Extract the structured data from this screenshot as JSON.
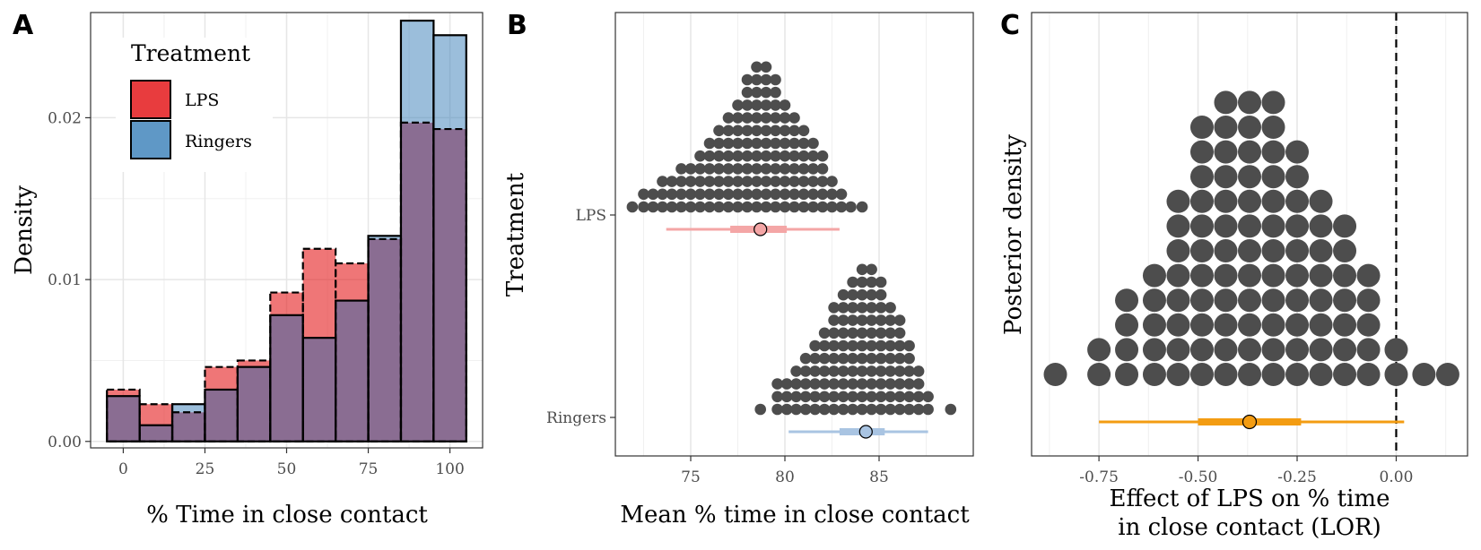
{
  "panels": {
    "a": {
      "letter": "A"
    },
    "b": {
      "letter": "B"
    },
    "c": {
      "letter": "C"
    }
  },
  "colors": {
    "lps_fill": "#e41a1c",
    "ringers_fill": "#377eb8",
    "overlap": "#8a6d92",
    "dot": "#4d4d4d",
    "lps_interval": "#f4a6a6",
    "ringers_interval": "#a9c4e2",
    "effect_interval": "#f39c12"
  },
  "chart_data": [
    {
      "type": "histogram",
      "panel": "A",
      "xlabel": "% Time in close contact",
      "ylabel": "Density",
      "xlim": [
        -10,
        110
      ],
      "ylim": [
        -0.0004,
        0.0265
      ],
      "xticks": [
        0,
        25,
        50,
        75,
        100
      ],
      "xtick_labels": [
        "0",
        "25",
        "50",
        "75",
        "100"
      ],
      "yticks": [
        0,
        0.01,
        0.02
      ],
      "ytick_labels": [
        "0.00",
        "0.01",
        "0.02"
      ],
      "bin_edges": [
        -5,
        5,
        15,
        25,
        35,
        45,
        55,
        65,
        75,
        85,
        95,
        105
      ],
      "legend": {
        "title": "Treatment",
        "position": "top-left",
        "entries": [
          "LPS",
          "Ringers"
        ]
      },
      "grid": true,
      "series": [
        {
          "name": "LPS",
          "values": [
            0.0032,
            0.0023,
            0.0018,
            0.0046,
            0.005,
            0.0092,
            0.0119,
            0.011,
            0.0125,
            0.0197,
            0.0193
          ]
        },
        {
          "name": "Ringers",
          "values": [
            0.0028,
            0.001,
            0.0023,
            0.0032,
            0.0046,
            0.0078,
            0.0064,
            0.0087,
            0.0127,
            0.026,
            0.0251
          ]
        }
      ]
    },
    {
      "type": "dotplot",
      "panel": "B",
      "xlabel": "Mean % time in close contact",
      "ylabel": "Treatment",
      "xlim": [
        71,
        90
      ],
      "xticks": [
        75,
        80,
        85
      ],
      "xtick_labels": [
        "75",
        "80",
        "85"
      ],
      "categories": [
        "LPS",
        "Ringers"
      ],
      "dot_binwidth": 0.5,
      "grid": true,
      "series": [
        {
          "name": "LPS",
          "bins": [
            71.9,
            72.5,
            73.0,
            73.5,
            74.0,
            74.5,
            75.0,
            75.5,
            76.0,
            76.5,
            77.0,
            77.5,
            78.0,
            78.5,
            79.0,
            79.5,
            80.0,
            80.5,
            81.0,
            81.5,
            82.0,
            82.5,
            83.0,
            83.5,
            84.1
          ],
          "counts": [
            1,
            2,
            2,
            3,
            3,
            4,
            4,
            5,
            6,
            7,
            8,
            9,
            11,
            12,
            12,
            11,
            9,
            8,
            7,
            6,
            5,
            3,
            2,
            1,
            1
          ],
          "median": 78.7,
          "interval_66": [
            77.1,
            80.1
          ],
          "interval_95": [
            73.7,
            82.9
          ]
        },
        {
          "name": "Ringers",
          "bins": [
            78.7,
            79.6,
            80.1,
            80.6,
            81.1,
            81.6,
            82.1,
            82.6,
            83.1,
            83.6,
            84.1,
            84.6,
            85.1,
            85.6,
            86.1,
            86.6,
            87.1,
            87.6,
            88.8
          ],
          "counts": [
            1,
            3,
            3,
            4,
            5,
            6,
            7,
            9,
            10,
            11,
            12,
            12,
            11,
            9,
            8,
            6,
            4,
            2,
            1
          ],
          "median": 84.3,
          "interval_66": [
            82.9,
            85.3
          ],
          "interval_95": [
            80.2,
            87.6
          ]
        }
      ]
    },
    {
      "type": "dotplot",
      "panel": "C",
      "xlabel": "Effect of LPS on % time",
      "xlabel2": "in close contact (LOR)",
      "ylabel": "Posterior density",
      "xlim": [
        -0.92,
        0.18
      ],
      "xticks": [
        -0.75,
        -0.5,
        -0.25,
        0.0
      ],
      "xtick_labels": [
        "-0.75",
        "-0.50",
        "-0.25",
        "0.00"
      ],
      "reference_line": 0.0,
      "dot_binwidth": 0.06,
      "grid": true,
      "series": [
        {
          "name": "LOR",
          "bins": [
            -0.86,
            -0.75,
            -0.68,
            -0.61,
            -0.55,
            -0.49,
            -0.43,
            -0.37,
            -0.31,
            -0.25,
            -0.19,
            -0.13,
            -0.07,
            0.0,
            0.07,
            0.13
          ],
          "counts": [
            1,
            2,
            4,
            5,
            8,
            11,
            12,
            12,
            12,
            10,
            8,
            7,
            5,
            2,
            1,
            1
          ],
          "median": -0.37,
          "interval_66": [
            -0.5,
            -0.24
          ],
          "interval_95": [
            -0.75,
            0.02
          ]
        }
      ]
    }
  ]
}
